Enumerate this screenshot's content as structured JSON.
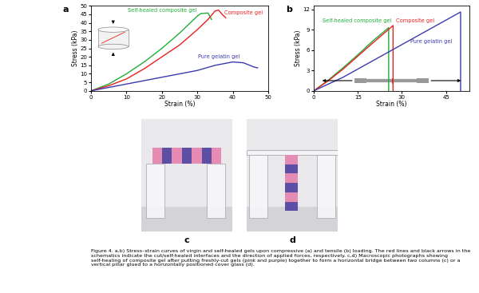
{
  "chart_data": [
    {
      "type": "line",
      "label": "a",
      "x_label": "Strain (%)",
      "y_label": "Stress (kPa)",
      "xlim": [
        0,
        50
      ],
      "ylim": [
        0,
        50
      ],
      "xticks": [
        0,
        10,
        20,
        30,
        40,
        50
      ],
      "yticks": [
        0,
        5,
        10,
        15,
        20,
        25,
        30,
        35,
        40,
        45,
        50
      ],
      "series": [
        {
          "name": "Self-healed composite gel",
          "color": "#1fae3a",
          "x": [
            0,
            5,
            10,
            15,
            20,
            25,
            28,
            30,
            31,
            33,
            34
          ],
          "values": [
            0,
            4,
            10,
            17,
            25,
            34,
            40,
            44,
            45.5,
            45.8,
            42
          ]
        },
        {
          "name": "Composite gel",
          "color": "#e8201e",
          "x": [
            0,
            5,
            10,
            15,
            20,
            25,
            30,
            33,
            35,
            36,
            37,
            38
          ],
          "values": [
            0,
            3,
            7,
            13,
            20,
            27,
            36,
            42,
            47,
            47.5,
            45,
            43
          ]
        },
        {
          "name": "Pure gelatin gel",
          "color": "#3a3ab0",
          "x": [
            0,
            10,
            20,
            30,
            35,
            40,
            43,
            46,
            47
          ],
          "values": [
            0,
            4,
            8,
            12,
            15,
            17,
            16.5,
            14,
            13.5
          ]
        }
      ]
    },
    {
      "type": "line",
      "label": "b",
      "x_label": "Strain (%)",
      "y_label": "Stress (kPa)",
      "xlim": [
        0,
        53
      ],
      "ylim": [
        0,
        12.5
      ],
      "xticks": [
        0,
        15,
        30,
        45
      ],
      "yticks": [
        0,
        3,
        6,
        9,
        12
      ],
      "series": [
        {
          "name": "Self-healed composite gel",
          "color": "#1fae3a",
          "x": [
            0,
            5,
            10,
            15,
            20,
            25.5,
            25.5
          ],
          "values": [
            0,
            1.6,
            3.4,
            5.3,
            7.3,
            9.3,
            0
          ]
        },
        {
          "name": "Composite gel",
          "color": "#e8201e",
          "x": [
            0,
            5,
            10,
            15,
            20,
            27,
            27
          ],
          "values": [
            0,
            1.5,
            3.2,
            5.1,
            7.0,
            9.6,
            0
          ]
        },
        {
          "name": "Pure gelatin gel",
          "color": "#3a3ab0",
          "x": [
            0,
            10,
            20,
            30,
            40,
            50,
            50
          ],
          "values": [
            0,
            2.0,
            4.4,
            6.8,
            9.2,
            11.6,
            0
          ]
        }
      ]
    }
  ],
  "photos": [
    {
      "label": "c"
    },
    {
      "label": "d"
    }
  ],
  "caption": "Figure 4. a,b) Stress–strain curves of virgin and self-healed gels upon compressive (a) and tensile (b) loading. The red lines and black arrows in the schematics indicate the cut/self-healed interfaces and the direction of applied forces, respectively. c,d) Macroscopic photographs showing self-healing of composite gel after putting freshly-cut gels (pink and purple) together to form a horizontal bridge between two columns (c) or a vertical pillar glued to a horizontally positioned cover glass (d)."
}
